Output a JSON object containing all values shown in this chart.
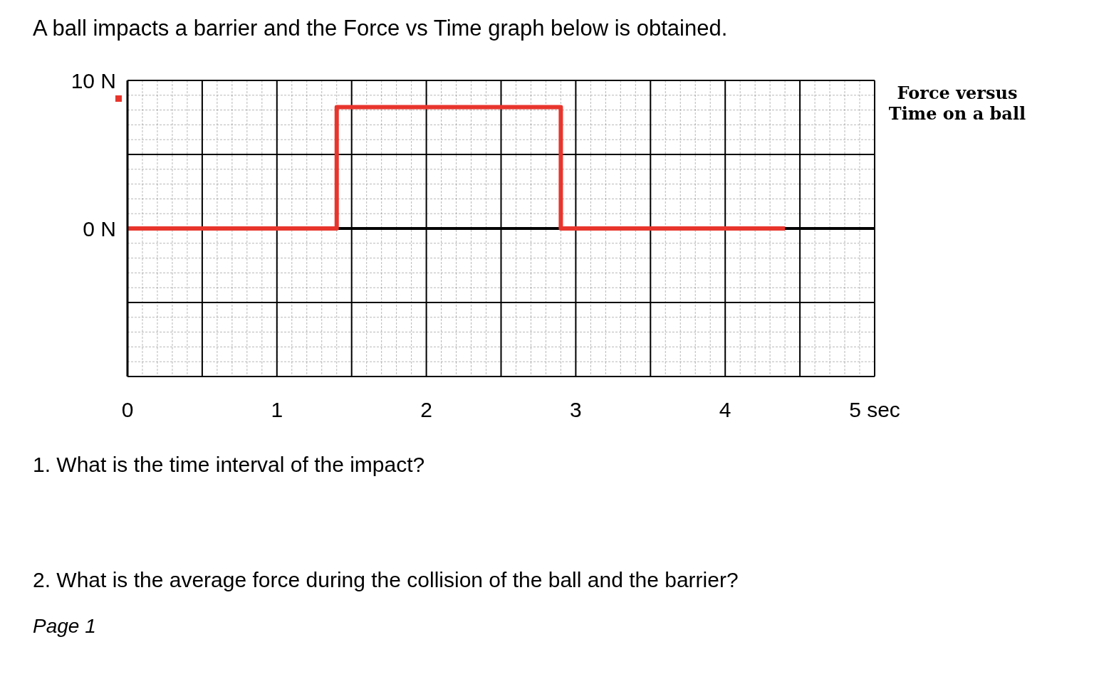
{
  "chart_data": {
    "type": "step",
    "title": "A ball impacts a barrier and the Force vs Time graph below is obtained.",
    "annotations": [
      "Force versus Time on a ball",
      "1.   What is the time interval of the impact?",
      "2.   What is the average force during the collision of the ball and the barrier?",
      "Page 1"
    ],
    "x": [
      0,
      1.4,
      2.9,
      4.4
    ],
    "series": [
      {
        "color": "#e8352c",
        "values": [
          0,
          8.2,
          0,
          0
        ]
      }
    ],
    "xlim": [
      0,
      5
    ],
    "xticks": [
      0,
      1,
      2,
      3,
      4,
      {
        "value": 5,
        "label": "5 sec"
      }
    ],
    "ylim": [
      -10,
      10
    ],
    "yticks": [
      {
        "value": -10,
        "label": null
      },
      {
        "value": 0,
        "label": "0 N"
      },
      {
        "value": 10,
        "label": "10 N"
      }
    ],
    "grid": true,
    "marker": "none",
    "line_style": "solid"
  }
}
